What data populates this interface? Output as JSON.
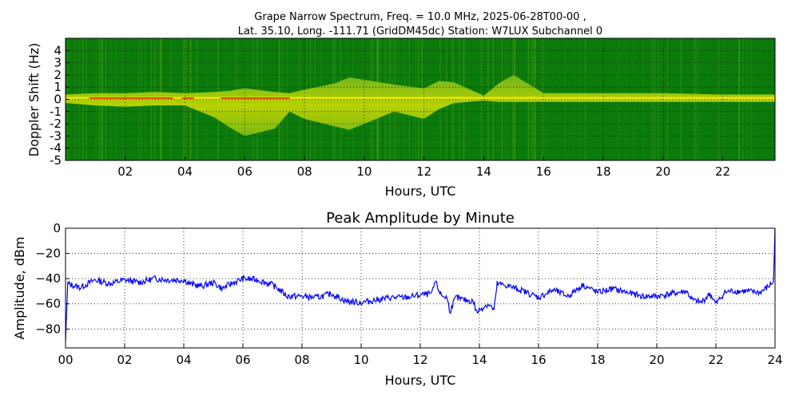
{
  "chart_data": [
    {
      "type": "heatmap",
      "title_line1": "Grape Narrow Spectrum, Freq. = 10.0 MHz, 2025-06-28T00-00 ,",
      "title_line2": "Lat.  35.10, Long. -111.71 (GridDM45dc) Station: W7LUX Subchannel 0",
      "xlabel": "Hours, UTC",
      "ylabel": "Doppler Shift (Hz)",
      "xlim": [
        0,
        23.75
      ],
      "ylim": [
        -5,
        5
      ],
      "xticks": [
        2,
        4,
        6,
        8,
        10,
        12,
        14,
        16,
        18,
        20,
        22
      ],
      "xtick_labels": [
        "02",
        "04",
        "06",
        "08",
        "10",
        "12",
        "14",
        "16",
        "18",
        "20",
        "22"
      ],
      "yticks": [
        4,
        3,
        2,
        1,
        0,
        -1,
        -2,
        -3,
        -4,
        -5
      ],
      "ytick_labels": [
        "4",
        "3",
        "2",
        "1",
        "0",
        "-1",
        "-2",
        "-3",
        "-4",
        "-5"
      ],
      "grid": true,
      "colors": {
        "background": "#0a7a0a",
        "carrier": "#e8e800",
        "peak": "#e62a00",
        "grid": "#000000"
      },
      "band": {
        "x": [
          0,
          1,
          2,
          3,
          4,
          5,
          5.5,
          6,
          7,
          7.5,
          8,
          9,
          9.5,
          10,
          11,
          12,
          12.5,
          13,
          14,
          14.5,
          15,
          16,
          18,
          20,
          22,
          23.75
        ],
        "upper": [
          0.4,
          0.5,
          0.5,
          0.6,
          0.5,
          0.6,
          0.7,
          0.9,
          0.6,
          0.5,
          0.8,
          1.3,
          1.8,
          1.6,
          1.2,
          0.9,
          1.5,
          1.4,
          0.3,
          1.3,
          2.0,
          0.5,
          0.5,
          0.5,
          0.4,
          0.4
        ],
        "lower": [
          -0.3,
          -0.5,
          -0.6,
          -0.5,
          -0.5,
          -1.5,
          -2.3,
          -3.0,
          -2.4,
          -1.0,
          -1.6,
          -2.2,
          -2.5,
          -2.0,
          -1.0,
          -1.6,
          -0.8,
          -0.3,
          -0.1,
          -0.2,
          -0.2,
          -0.2,
          -0.2,
          -0.2,
          -0.2,
          -0.2
        ]
      },
      "carrier_hz": 0.1
    },
    {
      "type": "line",
      "title": "Peak Amplitude by Minute",
      "xlabel": "Hours, UTC",
      "ylabel": "Amplitude, dBm",
      "xlim": [
        0,
        24
      ],
      "ylim": [
        -95,
        0
      ],
      "xticks": [
        0,
        2,
        4,
        6,
        8,
        10,
        12,
        14,
        16,
        18,
        20,
        22,
        24
      ],
      "xtick_labels": [
        "00",
        "02",
        "04",
        "06",
        "08",
        "10",
        "12",
        "14",
        "16",
        "18",
        "20",
        "22",
        "24"
      ],
      "yticks": [
        0,
        -20,
        -40,
        -60,
        -80
      ],
      "ytick_labels": [
        "0",
        "−20",
        "−40",
        "−60",
        "−80"
      ],
      "grid": true,
      "series": [
        {
          "color": "#0000ff",
          "x": [
            0,
            0.05,
            0.5,
            1,
            1.5,
            2,
            2.5,
            3,
            3.5,
            4,
            4.2,
            4.6,
            5,
            5.3,
            5.6,
            6,
            6.5,
            7,
            7.2,
            7.5,
            8,
            8.5,
            9,
            9.5,
            10,
            10.5,
            11,
            11.5,
            12,
            12.4,
            12.5,
            12.7,
            12.9,
            13,
            13.2,
            13.5,
            13.8,
            13.9,
            14.1,
            14.3,
            14.5,
            14.6,
            15,
            15.5,
            16,
            16.5,
            17,
            17.5,
            18,
            18.5,
            19,
            19.5,
            20,
            20.5,
            21,
            21.2,
            21.5,
            21.8,
            22,
            22.3,
            22.5,
            23,
            23.5,
            23.8,
            23.95,
            24
          ],
          "y": [
            -90,
            -44,
            -47,
            -41,
            -44,
            -41,
            -43,
            -40,
            -41,
            -41,
            -44,
            -46,
            -43,
            -48,
            -44,
            -40,
            -41,
            -45,
            -48,
            -54,
            -54,
            -55,
            -52,
            -58,
            -59,
            -57,
            -55,
            -55,
            -53,
            -52,
            -42,
            -53,
            -55,
            -66,
            -55,
            -57,
            -58,
            -67,
            -63,
            -60,
            -65,
            -44,
            -46,
            -50,
            -55,
            -49,
            -54,
            -45,
            -51,
            -48,
            -51,
            -54,
            -54,
            -52,
            -50,
            -57,
            -59,
            -52,
            -60,
            -51,
            -50,
            -50,
            -51,
            -46,
            -42,
            0
          ]
        }
      ]
    }
  ]
}
